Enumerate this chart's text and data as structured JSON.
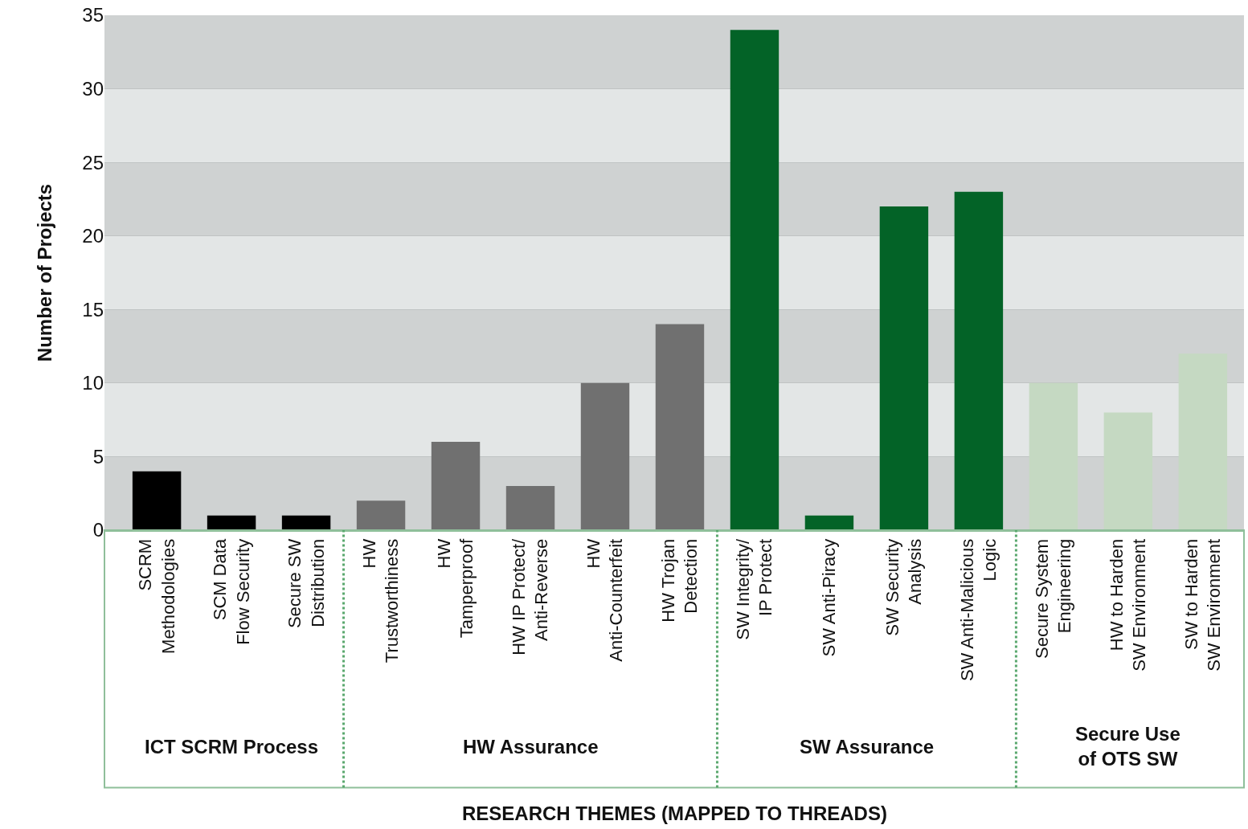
{
  "chart_data": {
    "type": "bar",
    "ylabel": "Number of Projects",
    "categories": [
      "SCRM\nMethodologies",
      "SCM Data\nFlow Security",
      "Secure SW\nDistribution",
      "HW\nTrustworthiness",
      "HW\nTamperproof",
      "HW IP Protect/\nAnti-Reverse",
      "HW\nAnti-Counterfeit",
      "HW Trojan\nDetection",
      "SW Integrity/\nIP Protect",
      "SW Anti-Piracy",
      "SW Security\nAnalysis",
      "SW Anti-Malicious\nLogic",
      "Secure System\nEngineering",
      "HW to Harden\nSW Environment",
      "SW to Harden\nSW Environment"
    ],
    "values": [
      4,
      1,
      1,
      2,
      6,
      3,
      10,
      14,
      34,
      1,
      22,
      23,
      10,
      8,
      12
    ],
    "colors": [
      "#000000",
      "#000000",
      "#000000",
      "#707070",
      "#707070",
      "#707070",
      "#707070",
      "#707070",
      "#036327",
      "#036327",
      "#036327",
      "#036327",
      "#c5d9c2",
      "#c5d9c2",
      "#c5d9c2"
    ],
    "annotations": [
      "ICT SCRM Process",
      "HW Assurance",
      "SW Assurance",
      "Secure Use\nof OTS SW",
      "RESEARCH THEMES (MAPPED TO THREADS)"
    ],
    "ylim": [
      0,
      35
    ],
    "yticks": [
      0,
      5,
      10,
      15,
      20,
      25,
      30,
      35
    ],
    "grid": "y"
  }
}
